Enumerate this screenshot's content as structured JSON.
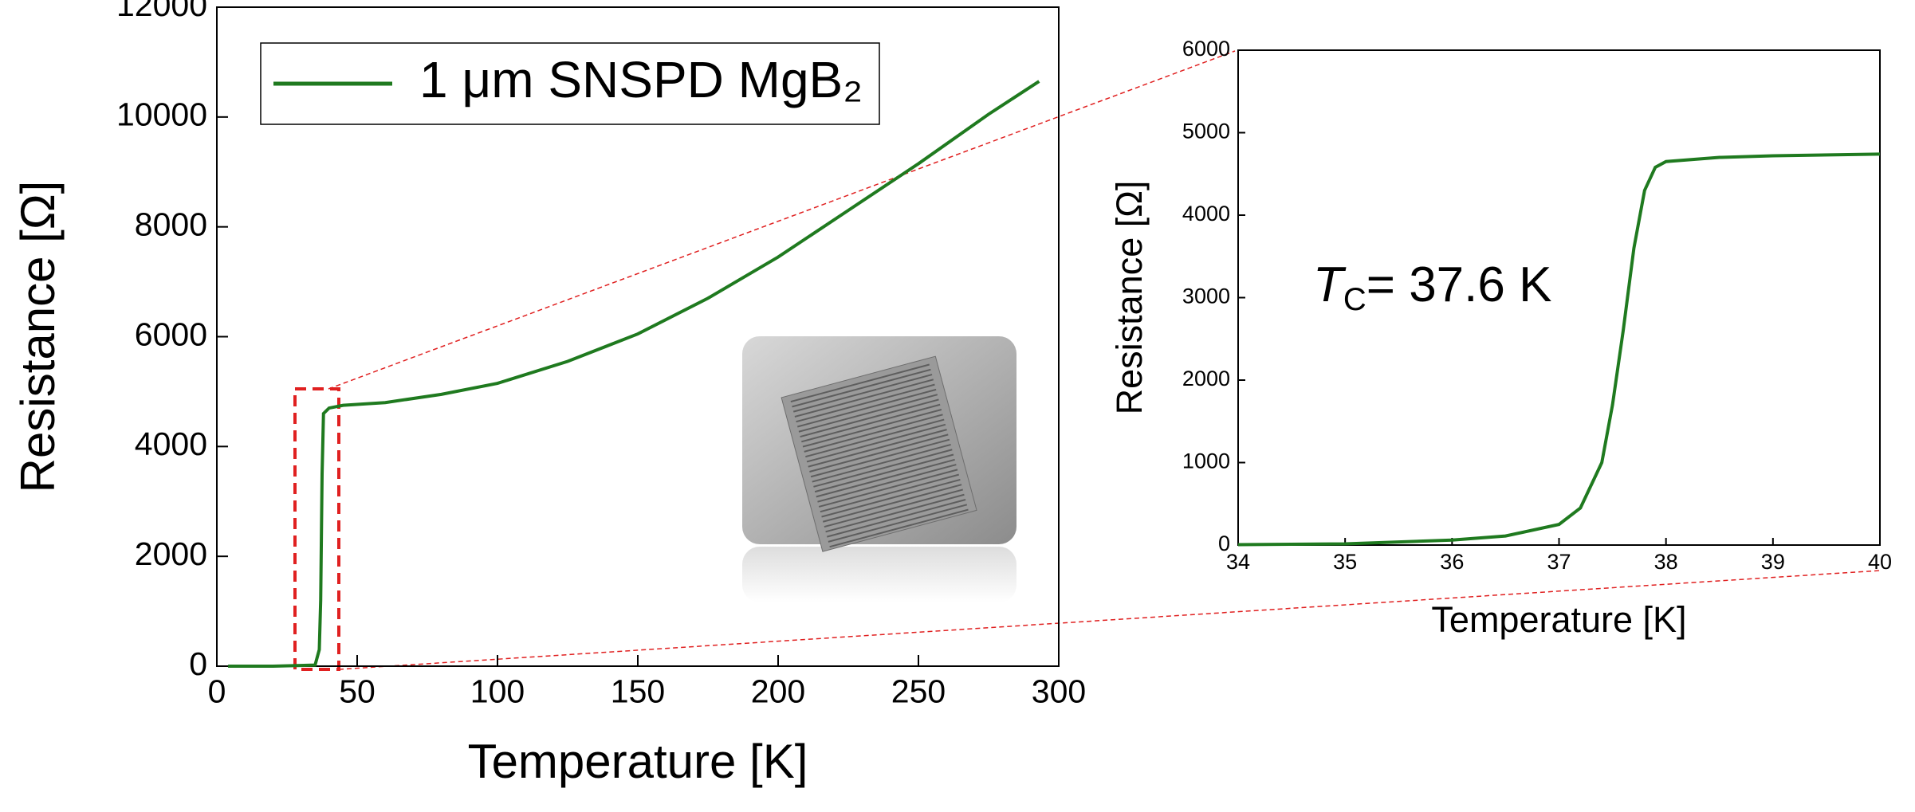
{
  "chart_data": [
    {
      "type": "line",
      "x_label": "Temperature [K]",
      "y_label": "Resistance [Ω]",
      "x": [
        4,
        20,
        35,
        36.5,
        37,
        37.5,
        38,
        40,
        45,
        60,
        80,
        100,
        125,
        150,
        175,
        200,
        225,
        250,
        275,
        293
      ],
      "series": [
        {
          "name": "1 μm SNSPD MgB₂",
          "color": "#1f7a1f",
          "values": [
            0,
            0,
            20,
            300,
            1200,
            3500,
            4600,
            4700,
            4750,
            4800,
            4950,
            5150,
            5550,
            6050,
            6700,
            7450,
            8300,
            9150,
            10050,
            10650
          ]
        }
      ],
      "xlim": [
        0,
        300
      ],
      "xticks": [
        0,
        50,
        100,
        150,
        200,
        250,
        300
      ],
      "ylim": [
        0,
        12000
      ],
      "yticks": [
        0,
        2000,
        4000,
        6000,
        8000,
        10000,
        12000
      ],
      "legend": "upper left"
    },
    {
      "type": "line",
      "x_label": "Temperature [K]",
      "y_label": "Resistance [Ω]",
      "annotation": {
        "symbol": "T",
        "subscript": "C",
        "text": "= 37.6 K"
      },
      "x": [
        34,
        35,
        36,
        36.5,
        37,
        37.2,
        37.4,
        37.5,
        37.6,
        37.7,
        37.8,
        37.9,
        38,
        38.5,
        39,
        40
      ],
      "series": [
        {
          "name": null,
          "color": "#1f7a1f",
          "values": [
            5,
            15,
            60,
            110,
            250,
            450,
            1000,
            1700,
            2600,
            3600,
            4300,
            4580,
            4650,
            4700,
            4720,
            4740
          ]
        }
      ],
      "xlim": [
        34,
        40
      ],
      "xticks": [
        34,
        35,
        36,
        37,
        38,
        39,
        40
      ],
      "ylim": [
        0,
        6000
      ],
      "yticks": [
        0,
        1000,
        2000,
        3000,
        4000,
        5000,
        6000
      ]
    }
  ]
}
